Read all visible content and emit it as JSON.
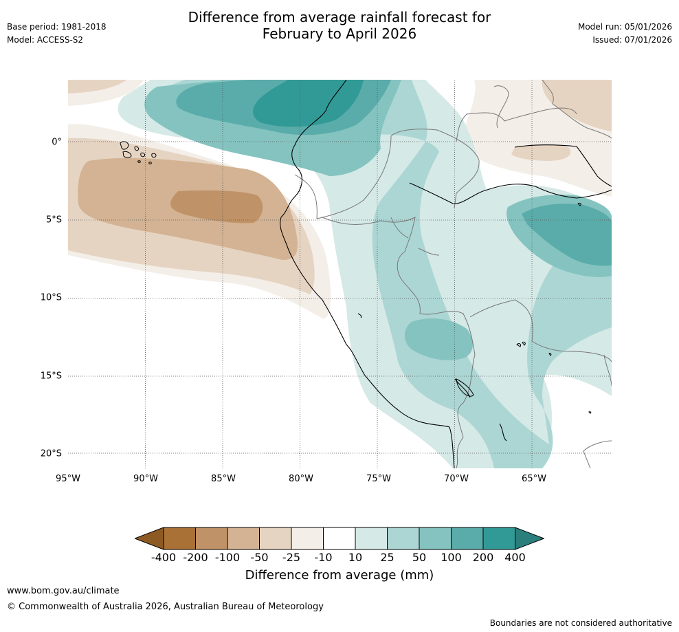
{
  "header": {
    "base_period": "Base period: 1981-2018",
    "model": "Model: ACCESS-S2",
    "title_line1": "Difference from average rainfall forecast for",
    "title_line2": "February to April 2026",
    "model_run": "Model run: 05/01/2026",
    "issued": "Issued: 07/01/2026"
  },
  "map": {
    "longitude_labels": [
      "95°W",
      "90°W",
      "85°W",
      "80°W",
      "75°W",
      "70°W",
      "65°W"
    ],
    "latitude_labels": [
      "0°",
      "5°S",
      "10°S",
      "15°S",
      "20°S"
    ],
    "extent": {
      "lon_min": -95,
      "lon_max": -60,
      "lat_min": -21,
      "lat_max": 4
    }
  },
  "legend": {
    "labels": [
      "-400",
      "-200",
      "-100",
      "-50",
      "-25",
      "-10",
      "10",
      "25",
      "50",
      "100",
      "200",
      "400"
    ],
    "colors": [
      "#8e5a24",
      "#a97136",
      "#c09267",
      "#d3b393",
      "#e6d4c2",
      "#f3eee8",
      "#ffffff",
      "#d5e9e7",
      "#acd6d4",
      "#84c3c0",
      "#5aacaa",
      "#329a96",
      "#2a7f7c"
    ],
    "title": "Difference from average (mm)"
  },
  "footer": {
    "url": "www.bom.gov.au/climate",
    "copyright": "© Commonwealth of Australia 2026, Australian Bureau of Meteorology",
    "disclaimer": "Boundaries are not considered authoritative"
  }
}
